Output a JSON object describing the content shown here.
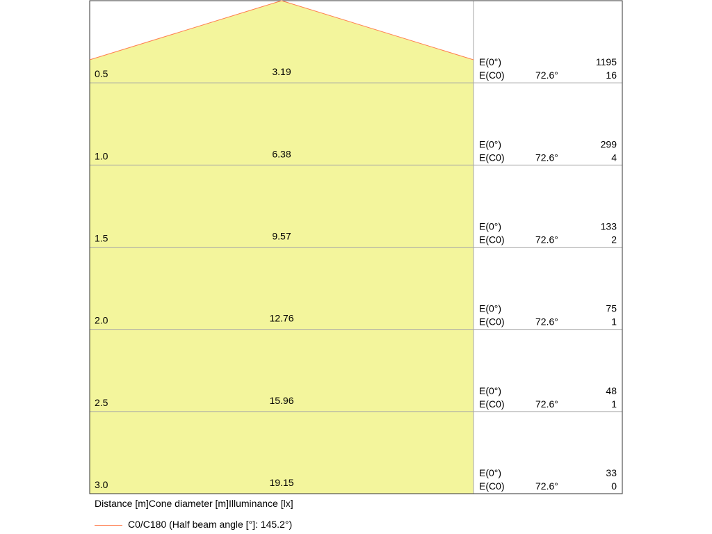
{
  "chart_data": {
    "type": "cone-diagram",
    "columns": {
      "distance": "Distance [m]",
      "cone": "Cone diameter [m]",
      "illuminance": "Illuminance [lx]"
    },
    "series_name": "C0/C180 (Half beam angle [°]: 145.2°)",
    "series_color": "#ff7f50",
    "fill_color": "#f3f59c",
    "rows": [
      {
        "distance": "0.5",
        "diameter": "3.19",
        "e0_label": "E(0°)",
        "e0": "1195",
        "ec_label": "E(C0)",
        "angle": "72.6°",
        "ec": "16"
      },
      {
        "distance": "1.0",
        "diameter": "6.38",
        "e0_label": "E(0°)",
        "e0": "299",
        "ec_label": "E(C0)",
        "angle": "72.6°",
        "ec": "4"
      },
      {
        "distance": "1.5",
        "diameter": "9.57",
        "e0_label": "E(0°)",
        "e0": "133",
        "ec_label": "E(C0)",
        "angle": "72.6°",
        "ec": "2"
      },
      {
        "distance": "2.0",
        "diameter": "12.76",
        "e0_label": "E(0°)",
        "e0": "75",
        "ec_label": "E(C0)",
        "angle": "72.6°",
        "ec": "1"
      },
      {
        "distance": "2.5",
        "diameter": "15.96",
        "e0_label": "E(0°)",
        "e0": "48",
        "ec_label": "E(C0)",
        "angle": "72.6°",
        "ec": "1"
      },
      {
        "distance": "3.0",
        "diameter": "19.15",
        "e0_label": "E(0°)",
        "e0": "33",
        "ec_label": "E(C0)",
        "angle": "72.6°",
        "ec": "0"
      }
    ]
  }
}
